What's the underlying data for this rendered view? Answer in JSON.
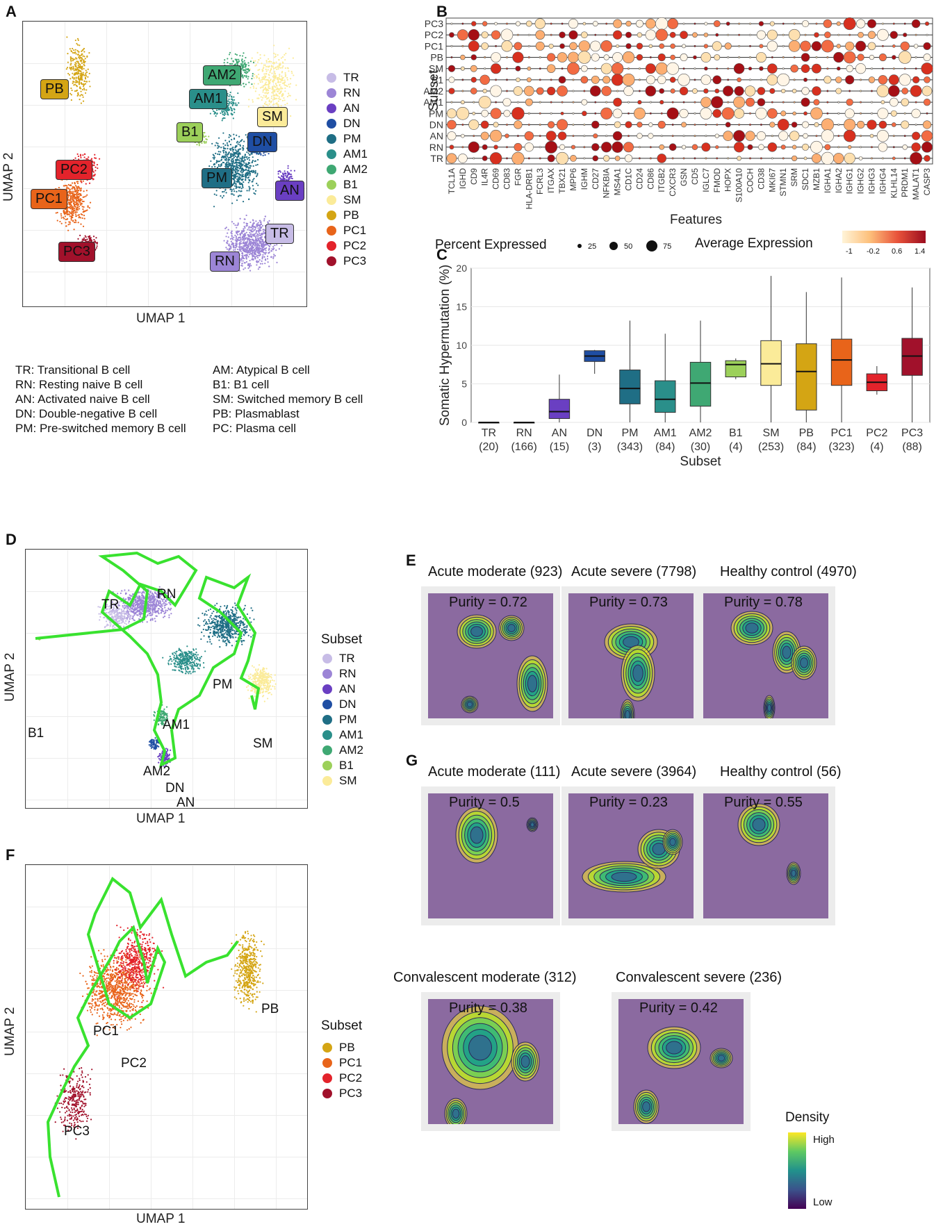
{
  "panels": {
    "A": {
      "letter": "A",
      "xlabel": "UMAP 1",
      "ylabel": "UMAP 2",
      "clusters": [
        {
          "label": "PB",
          "color": "#d4a514"
        },
        {
          "label": "PC2",
          "color": "#e3232b"
        },
        {
          "label": "PC1",
          "color": "#e8641a"
        },
        {
          "label": "PC3",
          "color": "#a1112b"
        },
        {
          "label": "AM2",
          "color": "#3fa873"
        },
        {
          "label": "AM1",
          "color": "#2a8f8a"
        },
        {
          "label": "B1",
          "color": "#9cd05a"
        },
        {
          "label": "SM",
          "color": "#fbeb99"
        },
        {
          "label": "DN",
          "color": "#1f4ea3"
        },
        {
          "label": "PM",
          "color": "#1f6e85"
        },
        {
          "label": "AN",
          "color": "#6a3fc2"
        },
        {
          "label": "TR",
          "color": "#c7bce6"
        },
        {
          "label": "RN",
          "color": "#9c85d6"
        }
      ],
      "legend": [
        {
          "label": "TR",
          "color": "#c7bce6"
        },
        {
          "label": "RN",
          "color": "#9c85d6"
        },
        {
          "label": "AN",
          "color": "#6a3fc2"
        },
        {
          "label": "DN",
          "color": "#1f4ea3"
        },
        {
          "label": "PM",
          "color": "#1f6e85"
        },
        {
          "label": "AM1",
          "color": "#2a8f8a"
        },
        {
          "label": "AM2",
          "color": "#3fa873"
        },
        {
          "label": "B1",
          "color": "#9cd05a"
        },
        {
          "label": "SM",
          "color": "#fbeb99"
        },
        {
          "label": "PB",
          "color": "#d4a514"
        },
        {
          "label": "PC1",
          "color": "#e8641a"
        },
        {
          "label": "PC2",
          "color": "#e3232b"
        },
        {
          "label": "PC3",
          "color": "#a1112b"
        }
      ],
      "definitions": [
        "TR: Transitional B cell",
        "RN: Resting naive B cell",
        "AN: Activated naive B cell",
        "DN: Double-negative B cell",
        "PM: Pre-switched memory B cell",
        "AM: Atypical B cell",
        "B1: B1 cell",
        "SM: Switched memory B cell",
        "PB: Plasmablast",
        "PC: Plasma cell"
      ]
    },
    "B": {
      "letter": "B",
      "ylabel": "Subset",
      "xlabel": "Features",
      "subsets": [
        "PC3",
        "PC2",
        "PC1",
        "PB",
        "SM",
        "B1",
        "AM2",
        "AM1",
        "PM",
        "DN",
        "AN",
        "RN",
        "TR"
      ],
      "features": [
        "TCL1A",
        "IGHD",
        "CD9",
        "IL4R",
        "CD69",
        "CD83",
        "FGR",
        "HLA-DRB1",
        "FCRL3",
        "ITGAX",
        "TBX21",
        "MPP6",
        "IGHM",
        "CD27",
        "NFKBIA",
        "MS4A1",
        "CD1C",
        "CD24",
        "CD86",
        "ITGB2",
        "CXCR3",
        "GSN",
        "CD5",
        "IGLC7",
        "FMOD",
        "HOPX",
        "S100A10",
        "COCH",
        "CD38",
        "MKI67",
        "STMN1",
        "SRM",
        "SDC1",
        "MZB1",
        "IGHA1",
        "IGHA2",
        "IGHG1",
        "IGHG2",
        "IGHG3",
        "IGHG4",
        "KLHL14",
        "PRDM1",
        "MALAT1",
        "CASP3"
      ],
      "size_legend_title": "Percent Expressed",
      "size_legend": [
        "25",
        "50",
        "75"
      ],
      "color_legend_title": "Average Expression",
      "color_legend_ticks": [
        "-1",
        "-0.2",
        "0.6",
        "1.4"
      ]
    },
    "C": {
      "letter": "C"
    },
    "D": {
      "letter": "D",
      "xlabel": "UMAP 1",
      "ylabel": "UMAP 2",
      "legend_title": "Subset",
      "legend": [
        {
          "label": "TR",
          "color": "#c7bce6"
        },
        {
          "label": "RN",
          "color": "#9c85d6"
        },
        {
          "label": "AN",
          "color": "#6a3fc2"
        },
        {
          "label": "DN",
          "color": "#1f4ea3"
        },
        {
          "label": "PM",
          "color": "#1f6e85"
        },
        {
          "label": "AM1",
          "color": "#2a8f8a"
        },
        {
          "label": "AM2",
          "color": "#3fa873"
        },
        {
          "label": "B1",
          "color": "#9cd05a"
        },
        {
          "label": "SM",
          "color": "#fbeb99"
        }
      ],
      "node_labels": [
        "RN",
        "TR",
        "PM",
        "B1",
        "AM1",
        "SM",
        "AM2",
        "DN",
        "AN"
      ]
    },
    "E": {
      "letter": "E",
      "plots": [
        {
          "title": "Acute moderate (923)",
          "purity": "Purity = 0.72"
        },
        {
          "title": "Acute severe (7798)",
          "purity": "Purity = 0.73"
        },
        {
          "title": "Healthy control (4970)",
          "purity": "Purity = 0.78"
        }
      ]
    },
    "F": {
      "letter": "F",
      "xlabel": "UMAP 1",
      "ylabel": "UMAP 2",
      "legend_title": "Subset",
      "legend": [
        {
          "label": "PB",
          "color": "#d4a514"
        },
        {
          "label": "PC1",
          "color": "#e8641a"
        },
        {
          "label": "PC2",
          "color": "#e3232b"
        },
        {
          "label": "PC3",
          "color": "#a1112b"
        }
      ],
      "node_labels": [
        "PB",
        "PC1",
        "PC2",
        "PC3"
      ]
    },
    "G": {
      "letter": "G",
      "plots": [
        {
          "title": "Acute moderate (111)",
          "purity": "Purity = 0.5"
        },
        {
          "title": "Acute severe (3964)",
          "purity": "Purity = 0.23"
        },
        {
          "title": "Healthy control (56)",
          "purity": "Purity = 0.55"
        },
        {
          "title": "Convalescent moderate (312)",
          "purity": "Purity = 0.38"
        },
        {
          "title": "Convalescent severe (236)",
          "purity": "Purity = 0.42"
        }
      ],
      "density_legend_title": "Density",
      "density_high": "High",
      "density_low": "Low"
    }
  },
  "chart_data": {
    "type": "box",
    "title": "",
    "xlabel": "Subset",
    "ylabel": "Somatic Hypermutation (%)",
    "ylim": [
      0,
      20
    ],
    "yticks": [
      0,
      5,
      10,
      15,
      20
    ],
    "categories": [
      "TR",
      "RN",
      "AN",
      "DN",
      "PM",
      "AM1",
      "AM2",
      "B1",
      "SM",
      "PB",
      "PC1",
      "PC2",
      "PC3"
    ],
    "counts": [
      "(20)",
      "(166)",
      "(15)",
      "(3)",
      "(343)",
      "(84)",
      "(30)",
      "(4)",
      "(253)",
      "(84)",
      "(323)",
      "(4)",
      "(88)"
    ],
    "colors": [
      "#c7bce6",
      "#9c85d6",
      "#6a3fc2",
      "#1f4ea3",
      "#1f6e85",
      "#2a8f8a",
      "#3fa873",
      "#9cd05a",
      "#fbeb99",
      "#d4a514",
      "#e8641a",
      "#e3232b",
      "#a1112b"
    ],
    "boxes": [
      {
        "min": 0,
        "q1": 0,
        "median": 0,
        "q3": 0,
        "max": 0
      },
      {
        "min": 0,
        "q1": 0,
        "median": 0,
        "q3": 0,
        "max": 0
      },
      {
        "min": 0,
        "q1": 0.5,
        "median": 1.4,
        "q3": 3.0,
        "max": 6.2
      },
      {
        "min": 6.3,
        "q1": 7.9,
        "median": 8.6,
        "q3": 9.3,
        "max": 9.4
      },
      {
        "min": 0,
        "q1": 2.4,
        "median": 4.4,
        "q3": 6.8,
        "max": 13.2
      },
      {
        "min": 0,
        "q1": 1.3,
        "median": 3.0,
        "q3": 5.4,
        "max": 11.5
      },
      {
        "min": 0,
        "q1": 2.1,
        "median": 5.1,
        "q3": 7.8,
        "max": 13.2
      },
      {
        "min": 5.6,
        "q1": 5.9,
        "median": 7.5,
        "q3": 8.0,
        "max": 8.3
      },
      {
        "min": 0,
        "q1": 4.8,
        "median": 7.6,
        "q3": 10.6,
        "max": 19.0
      },
      {
        "min": 0,
        "q1": 1.6,
        "median": 6.6,
        "q3": 10.2,
        "max": 16.9
      },
      {
        "min": 0,
        "q1": 4.8,
        "median": 8.1,
        "q3": 10.8,
        "max": 18.8
      },
      {
        "min": 3.6,
        "q1": 4.1,
        "median": 5.2,
        "q3": 6.3,
        "max": 7.3
      },
      {
        "min": 0,
        "q1": 6.1,
        "median": 8.6,
        "q3": 10.9,
        "max": 17.5
      }
    ]
  }
}
